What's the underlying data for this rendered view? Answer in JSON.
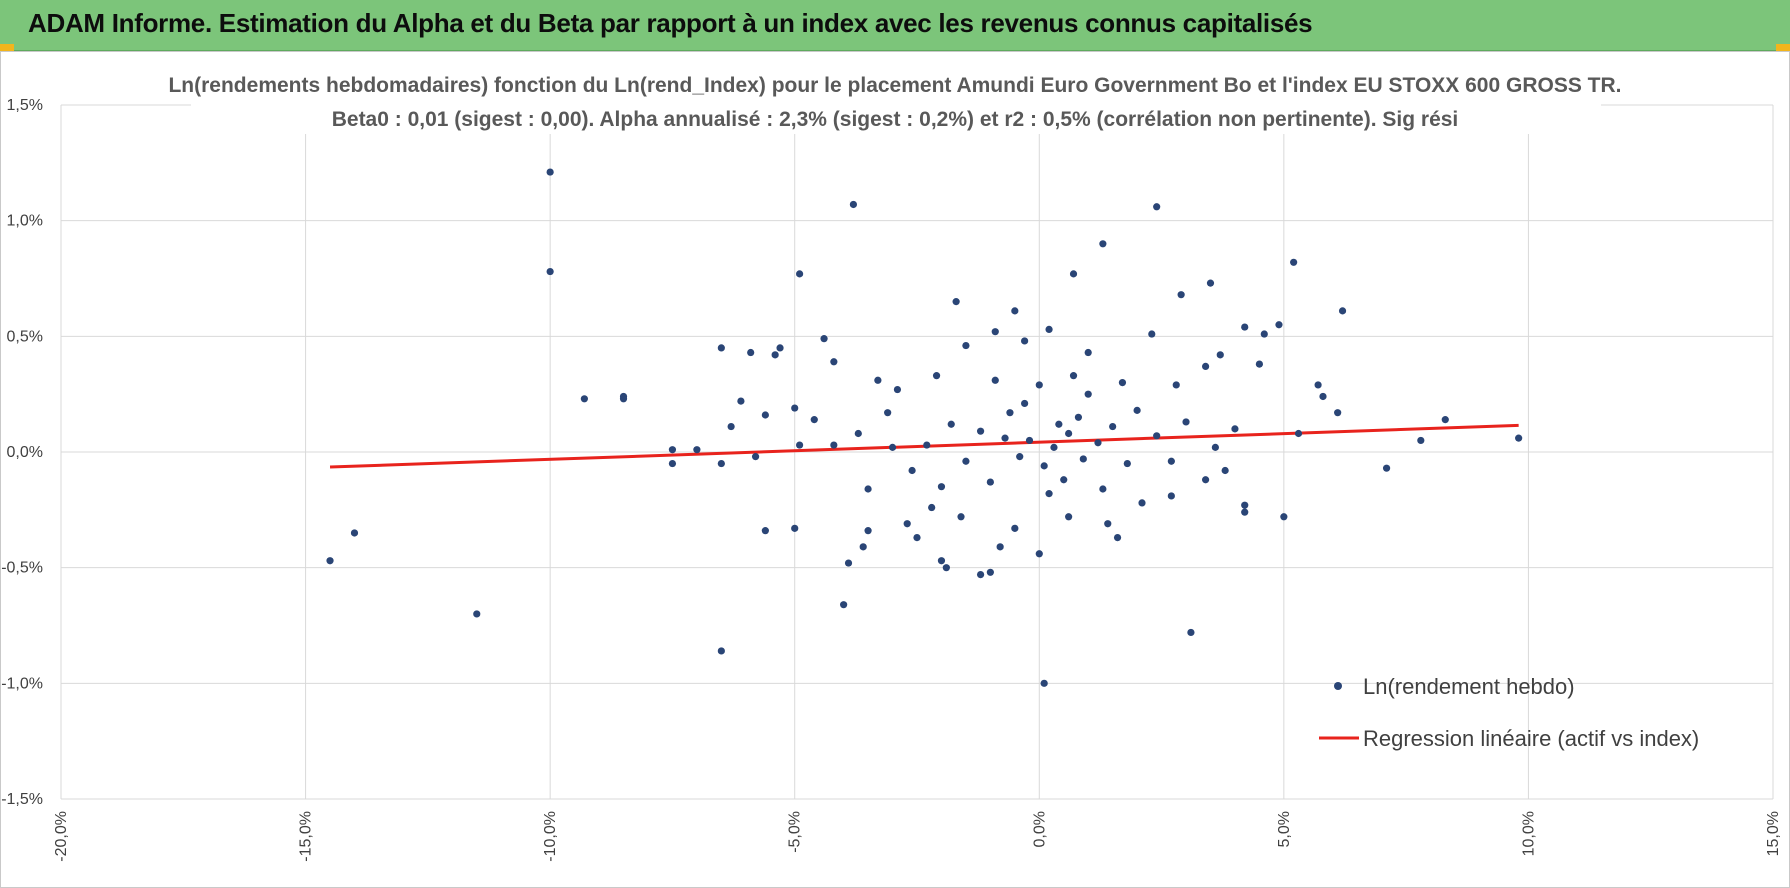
{
  "header": {
    "title": "ADAM Informe. Estimation du Alpha et du Beta par rapport à un index avec les revenus connus capitalisés",
    "accent": "#7cc57a"
  },
  "chart_data": {
    "type": "scatter",
    "title": "Ln(rendements hebdomadaires) fonction du Ln(rend_Index) pour le placement Amundi Euro Government Bo et l'index EU STOXX 600 GROSS TR.",
    "subtitle": "Beta0 : 0,01 (sigest : 0,00).  Alpha annualisé : 2,3% (sigest : 0,2%) et r2 : 0,5% (corrélation non pertinente). Sig rési",
    "xlabel": "",
    "ylabel": "",
    "xlim": [
      -20,
      15
    ],
    "ylim": [
      -1.5,
      1.5
    ],
    "x_ticks": [
      -20,
      -15,
      -10,
      -5,
      0,
      5,
      10,
      15
    ],
    "x_tick_labels": [
      "-20,0%",
      "-15,0%",
      "-10,0%",
      "-5,0%",
      "0,0%",
      "5,0%",
      "10,0%",
      "15,0%"
    ],
    "y_ticks": [
      1.5,
      1.0,
      0.5,
      0.0,
      -0.5,
      -1.0,
      -1.5
    ],
    "y_tick_labels": [
      "1,5%",
      "1,0%",
      "0,5%",
      "0,0%",
      "-0,5%",
      "-1,0%",
      "-1,5%"
    ],
    "grid": true,
    "legend_position": "bottom-right",
    "series": [
      {
        "name": "Ln(rendement hebdo)",
        "kind": "scatter",
        "color": "#2a4576",
        "points": [
          [
            -10.0,
            1.21
          ],
          [
            -10.0,
            0.78
          ],
          [
            -3.8,
            1.07
          ],
          [
            2.4,
            1.06
          ],
          [
            1.3,
            0.9
          ],
          [
            5.2,
            0.82
          ],
          [
            -4.9,
            0.77
          ],
          [
            0.7,
            0.77
          ],
          [
            3.5,
            0.73
          ],
          [
            2.9,
            0.68
          ],
          [
            -1.7,
            0.65
          ],
          [
            6.2,
            0.61
          ],
          [
            -0.5,
            0.61
          ],
          [
            -4.4,
            0.49
          ],
          [
            -6.5,
            0.45
          ],
          [
            -5.9,
            0.43
          ],
          [
            -5.3,
            0.45
          ],
          [
            -5.4,
            0.42
          ],
          [
            -9.3,
            0.23
          ],
          [
            -8.5,
            0.24
          ],
          [
            -8.5,
            0.23
          ],
          [
            -6.1,
            0.22
          ],
          [
            -5.6,
            0.16
          ],
          [
            -5.0,
            0.19
          ],
          [
            -4.2,
            0.39
          ],
          [
            4.2,
            0.54
          ],
          [
            4.9,
            0.55
          ],
          [
            4.6,
            0.51
          ],
          [
            5.7,
            0.29
          ],
          [
            5.8,
            0.24
          ],
          [
            6.1,
            0.17
          ],
          [
            8.3,
            0.14
          ],
          [
            7.8,
            0.05
          ],
          [
            9.8,
            0.06
          ],
          [
            7.1,
            -0.07
          ],
          [
            -7.5,
            0.01
          ],
          [
            -7.5,
            -0.05
          ],
          [
            -7.0,
            0.01
          ],
          [
            -6.5,
            -0.05
          ],
          [
            -6.3,
            0.11
          ],
          [
            -5.8,
            -0.02
          ],
          [
            -5.6,
            -0.34
          ],
          [
            -5.0,
            -0.33
          ],
          [
            -14.5,
            -0.47
          ],
          [
            -14.0,
            -0.35
          ],
          [
            -11.5,
            -0.7
          ],
          [
            -6.5,
            -0.86
          ],
          [
            -4.0,
            -0.66
          ],
          [
            -3.9,
            -0.48
          ],
          [
            -3.6,
            -0.41
          ],
          [
            -3.5,
            -0.34
          ],
          [
            -2.5,
            -0.37
          ],
          [
            -2.0,
            -0.47
          ],
          [
            -1.9,
            -0.5
          ],
          [
            -1.2,
            -0.53
          ],
          [
            -1.0,
            -0.52
          ],
          [
            -0.8,
            -0.41
          ],
          [
            0.0,
            -0.44
          ],
          [
            0.1,
            -1.0
          ],
          [
            1.6,
            -0.37
          ],
          [
            3.1,
            -0.78
          ],
          [
            4.2,
            -0.23
          ],
          [
            4.2,
            -0.26
          ],
          [
            5.0,
            -0.28
          ],
          [
            5.3,
            0.08
          ],
          [
            4.5,
            0.38
          ],
          [
            3.7,
            0.42
          ],
          [
            3.4,
            0.37
          ],
          [
            2.8,
            0.29
          ],
          [
            2.3,
            0.51
          ],
          [
            1.0,
            0.43
          ],
          [
            0.2,
            0.53
          ],
          [
            -0.3,
            0.48
          ],
          [
            -0.9,
            0.52
          ],
          [
            -1.5,
            0.46
          ],
          [
            -2.1,
            0.33
          ],
          [
            -2.9,
            0.27
          ],
          [
            -3.3,
            0.31
          ],
          [
            -4.6,
            0.14
          ],
          [
            -4.9,
            0.03
          ],
          [
            -3.1,
            0.17
          ],
          [
            -3.5,
            -0.16
          ],
          [
            -2.7,
            -0.31
          ],
          [
            -2.2,
            -0.24
          ],
          [
            -1.6,
            -0.28
          ],
          [
            -0.5,
            -0.33
          ],
          [
            0.6,
            -0.28
          ],
          [
            1.4,
            -0.31
          ],
          [
            2.1,
            -0.22
          ],
          [
            2.7,
            -0.19
          ],
          [
            3.4,
            -0.12
          ],
          [
            3.8,
            -0.08
          ],
          [
            -0.2,
            0.05
          ],
          [
            0.3,
            0.02
          ],
          [
            0.6,
            0.08
          ],
          [
            0.9,
            -0.03
          ],
          [
            1.2,
            0.04
          ],
          [
            -0.4,
            -0.02
          ],
          [
            -0.7,
            0.06
          ],
          [
            0.1,
            -0.06
          ],
          [
            0.4,
            0.12
          ],
          [
            0.8,
            0.15
          ],
          [
            1.5,
            0.11
          ],
          [
            1.8,
            -0.05
          ],
          [
            -1.2,
            0.09
          ],
          [
            -1.5,
            -0.04
          ],
          [
            -1.8,
            0.12
          ],
          [
            -2.3,
            0.03
          ],
          [
            -2.6,
            -0.08
          ],
          [
            -0.3,
            0.21
          ],
          [
            0.2,
            -0.18
          ],
          [
            0.5,
            -0.12
          ],
          [
            1.0,
            0.25
          ],
          [
            1.3,
            -0.16
          ],
          [
            2.0,
            0.18
          ],
          [
            2.4,
            0.07
          ],
          [
            2.7,
            -0.04
          ],
          [
            3.0,
            0.13
          ],
          [
            -1.0,
            -0.13
          ],
          [
            -0.6,
            0.17
          ],
          [
            0.7,
            0.33
          ],
          [
            0.0,
            0.29
          ],
          [
            -0.9,
            0.31
          ],
          [
            1.7,
            0.3
          ],
          [
            -2.0,
            -0.15
          ],
          [
            -3.0,
            0.02
          ],
          [
            -3.7,
            0.08
          ],
          [
            -4.2,
            0.03
          ],
          [
            3.6,
            0.02
          ],
          [
            4.0,
            0.1
          ]
        ]
      },
      {
        "name": "Regression linéaire (actif vs index)",
        "kind": "line",
        "color": "#e8231d",
        "points": [
          [
            -14.5,
            -0.065
          ],
          [
            9.8,
            0.115
          ]
        ]
      }
    ]
  }
}
